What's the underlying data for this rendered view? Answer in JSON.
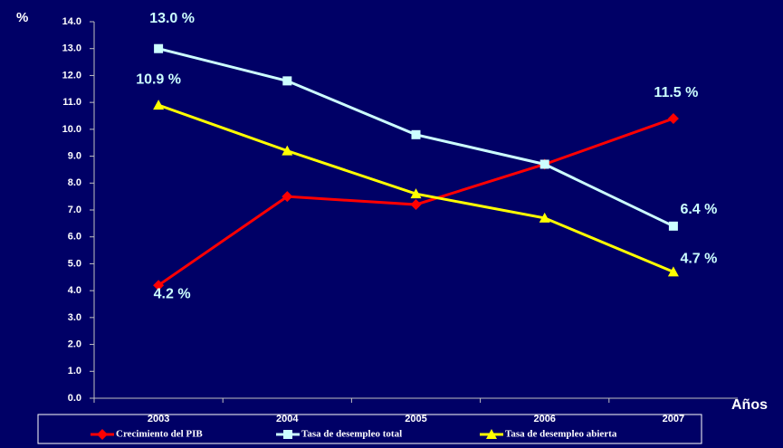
{
  "chart_data": {
    "type": "line",
    "y_label": "%",
    "x_label": "Años",
    "categories": [
      "2003",
      "2004",
      "2005",
      "2006",
      "2007"
    ],
    "series": [
      {
        "name": "Crecimiento del PIB",
        "color": "#ff0000",
        "marker": "diamond",
        "values": [
          4.2,
          7.5,
          7.2,
          8.7,
          10.4
        ],
        "value_labels": [
          "4.2 %",
          null,
          null,
          null,
          null
        ]
      },
      {
        "name": "Tasa de desempleo total",
        "color": "#ccffff",
        "marker": "square",
        "values": [
          13.0,
          11.8,
          9.8,
          8.7,
          6.4
        ],
        "value_labels": [
          "13.0 %",
          null,
          null,
          null,
          "6.4 %"
        ]
      },
      {
        "name": "Tasa de desempleo abierta",
        "color": "#ffff00",
        "marker": "triangle",
        "values": [
          10.9,
          9.2,
          7.6,
          6.7,
          4.7
        ],
        "value_labels": [
          "10.9 %",
          null,
          null,
          null,
          "4.7 %"
        ]
      }
    ],
    "annotations": [
      "11.5 %"
    ],
    "ylim": [
      0,
      14
    ],
    "yticks": [
      {
        "value": 0,
        "label": "0.0"
      },
      {
        "value": 1,
        "label": "1.0"
      },
      {
        "value": 2,
        "label": "2.0"
      },
      {
        "value": 3,
        "label": "3.0"
      },
      {
        "value": 4,
        "label": "4.0"
      },
      {
        "value": 5,
        "label": "5.0"
      },
      {
        "value": 6,
        "label": "6.0"
      },
      {
        "value": 7,
        "label": "7.0"
      },
      {
        "value": 8,
        "label": "8.0"
      },
      {
        "value": 9,
        "label": "9.0"
      },
      {
        "value": 10,
        "label": "10.0"
      },
      {
        "value": 11,
        "label": "11.0"
      },
      {
        "value": 12,
        "label": "12.0"
      },
      {
        "value": 13,
        "label": "13.0"
      },
      {
        "value": 14,
        "label": "14.0"
      }
    ],
    "grid": false,
    "legend": "bottom"
  }
}
